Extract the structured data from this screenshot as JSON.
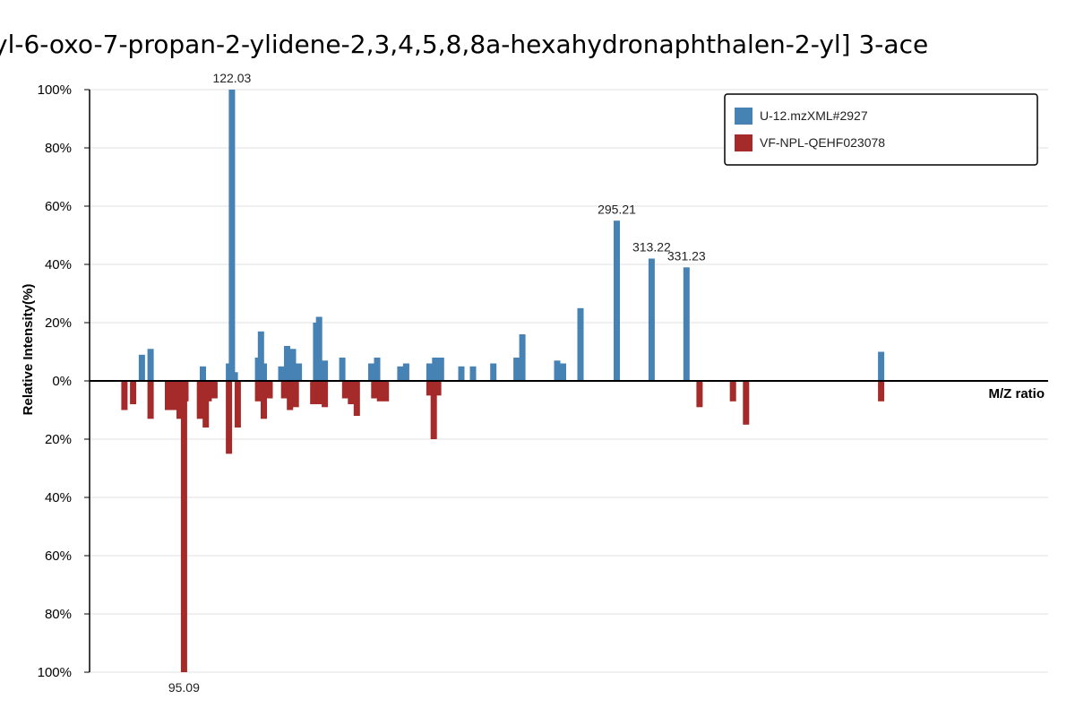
{
  "chart_data": {
    "type": "bar",
    "title": "yl-6-oxo-7-propan-2-ylidene-2,3,4,5,8,8a-hexahydronaphthalen-2-yl]  3-ace",
    "xlabel": "M/Z ratio",
    "ylabel": "Relative Intensity(%)",
    "ylim": [
      -100,
      100
    ],
    "xlim": [
      50,
      380
    ],
    "yticks": [
      "100%",
      "80%",
      "60%",
      "40%",
      "20%",
      "0%",
      "20%",
      "40%",
      "60%",
      "80%",
      "100%"
    ],
    "grid": true,
    "legend_position": "top-right",
    "series": [
      {
        "name": "U-12.mzXML#2927",
        "color": "#4682b4",
        "direction": "up",
        "points": [
          {
            "x": 68.0,
            "y": 9
          },
          {
            "x": 71.0,
            "y": 11
          },
          {
            "x": 89.0,
            "y": 5
          },
          {
            "x": 98.0,
            "y": 6
          },
          {
            "x": 99.0,
            "y": 100
          },
          {
            "x": 100.0,
            "y": 3
          },
          {
            "x": 108.0,
            "y": 8
          },
          {
            "x": 109.0,
            "y": 17
          },
          {
            "x": 110.0,
            "y": 6
          },
          {
            "x": 116.0,
            "y": 5
          },
          {
            "x": 118.0,
            "y": 12
          },
          {
            "x": 120.0,
            "y": 11
          },
          {
            "x": 122.03,
            "y": 6
          },
          {
            "x": 128.0,
            "y": 20
          },
          {
            "x": 129.0,
            "y": 22
          },
          {
            "x": 131.0,
            "y": 7
          },
          {
            "x": 137.0,
            "y": 8
          },
          {
            "x": 147.0,
            "y": 6
          },
          {
            "x": 149.0,
            "y": 8
          },
          {
            "x": 157.0,
            "y": 5
          },
          {
            "x": 159.0,
            "y": 6
          },
          {
            "x": 167.0,
            "y": 6
          },
          {
            "x": 169.0,
            "y": 8
          },
          {
            "x": 171.0,
            "y": 8
          },
          {
            "x": 178.0,
            "y": 5
          },
          {
            "x": 182.0,
            "y": 5
          },
          {
            "x": 189.0,
            "y": 6
          },
          {
            "x": 197.0,
            "y": 8
          },
          {
            "x": 199.0,
            "y": 16
          },
          {
            "x": 211.0,
            "y": 7
          },
          {
            "x": 213.0,
            "y": 6
          },
          {
            "x": 219.0,
            "y": 25
          },
          {
            "x": 231.5,
            "y": 55
          },
          {
            "x": 243.5,
            "y": 42
          },
          {
            "x": 255.5,
            "y": 39
          },
          {
            "x": 322.5,
            "y": 10
          }
        ]
      },
      {
        "name": "VF-NPL-QEHF023078",
        "color": "#a52a2a",
        "direction": "down",
        "points": [
          {
            "x": 62.0,
            "y": 10
          },
          {
            "x": 65.0,
            "y": 8
          },
          {
            "x": 71.0,
            "y": 13
          },
          {
            "x": 77.0,
            "y": 10
          },
          {
            "x": 79.0,
            "y": 10
          },
          {
            "x": 81.0,
            "y": 13
          },
          {
            "x": 82.5,
            "y": 100
          },
          {
            "x": 83.0,
            "y": 7
          },
          {
            "x": 88.0,
            "y": 13
          },
          {
            "x": 90.0,
            "y": 16
          },
          {
            "x": 91.0,
            "y": 7
          },
          {
            "x": 93.0,
            "y": 6
          },
          {
            "x": 98.0,
            "y": 25
          },
          {
            "x": 101.0,
            "y": 16
          },
          {
            "x": 108.0,
            "y": 7
          },
          {
            "x": 110.0,
            "y": 13
          },
          {
            "x": 112.0,
            "y": 6
          },
          {
            "x": 117.0,
            "y": 6
          },
          {
            "x": 119.0,
            "y": 10
          },
          {
            "x": 121.0,
            "y": 9
          },
          {
            "x": 127.0,
            "y": 8
          },
          {
            "x": 129.0,
            "y": 8
          },
          {
            "x": 131.0,
            "y": 9
          },
          {
            "x": 138.0,
            "y": 6
          },
          {
            "x": 140.0,
            "y": 8
          },
          {
            "x": 142.0,
            "y": 12
          },
          {
            "x": 148.0,
            "y": 6
          },
          {
            "x": 150.0,
            "y": 7
          },
          {
            "x": 152.0,
            "y": 7
          },
          {
            "x": 167.0,
            "y": 5
          },
          {
            "x": 168.5,
            "y": 20
          },
          {
            "x": 170.0,
            "y": 5
          },
          {
            "x": 260.0,
            "y": 9
          },
          {
            "x": 271.5,
            "y": 7
          },
          {
            "x": 276.0,
            "y": 15
          },
          {
            "x": 322.5,
            "y": 7
          }
        ]
      }
    ],
    "peak_labels": [
      {
        "text": "122.03",
        "series": 0,
        "x": 99.0,
        "y": 100
      },
      {
        "text": "295.21",
        "series": 0,
        "x": 231.5,
        "y": 55
      },
      {
        "text": "313.22",
        "series": 0,
        "x": 243.5,
        "y": 42
      },
      {
        "text": "331.23",
        "series": 0,
        "x": 255.5,
        "y": 39
      },
      {
        "text": "95.09",
        "series": 1,
        "x": 82.5,
        "y": 100
      }
    ]
  }
}
